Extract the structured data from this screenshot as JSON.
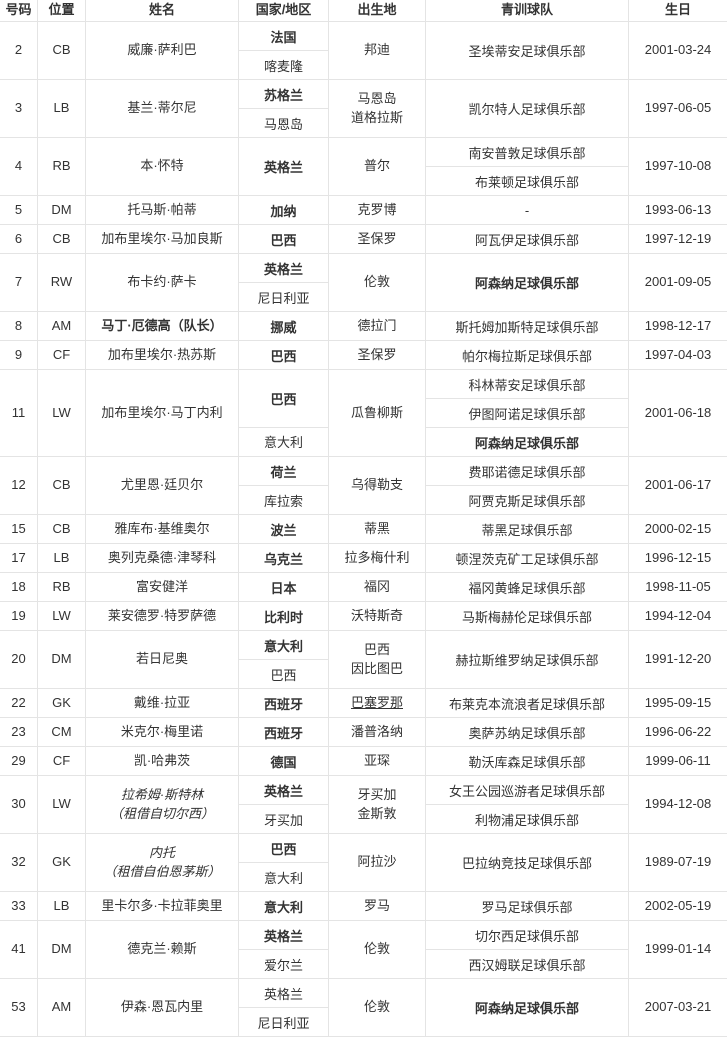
{
  "table": {
    "headers": [
      "号码",
      "位置",
      "姓名",
      "国家/地区",
      "出生地",
      "青训球队",
      "生日"
    ],
    "border_color": "#e4e4e4",
    "text_color": "#333333",
    "rows": [
      {
        "number": "2",
        "position": "CB",
        "name": {
          "lines": [
            "威廉·萨利巴"
          ]
        },
        "nationality": [
          {
            "text": "法国",
            "bold": true,
            "span": 1
          },
          {
            "text": "喀麦隆",
            "span": 1
          }
        ],
        "birthplace": {
          "lines": [
            "邦迪"
          ]
        },
        "clubs": [
          {
            "text": "圣埃蒂安足球俱乐部",
            "span": 2
          }
        ],
        "birthday": "2001-03-24",
        "units": 2
      },
      {
        "number": "3",
        "position": "LB",
        "name": {
          "lines": [
            "基兰·蒂尔尼"
          ]
        },
        "nationality": [
          {
            "text": "苏格兰",
            "bold": true,
            "span": 1
          },
          {
            "text": "马恩岛",
            "span": 1
          }
        ],
        "birthplace": {
          "lines": [
            "马恩岛",
            "道格拉斯"
          ]
        },
        "clubs": [
          {
            "text": "凯尔特人足球俱乐部",
            "span": 2
          }
        ],
        "birthday": "1997-06-05",
        "units": 2
      },
      {
        "number": "4",
        "position": "RB",
        "name": {
          "lines": [
            "本·怀特"
          ]
        },
        "nationality": [
          {
            "text": "英格兰",
            "bold": true,
            "span": 2
          }
        ],
        "birthplace": {
          "lines": [
            "普尔"
          ]
        },
        "clubs": [
          {
            "text": "南安普敦足球俱乐部",
            "span": 1
          },
          {
            "text": "布莱顿足球俱乐部",
            "span": 1
          }
        ],
        "birthday": "1997-10-08",
        "units": 2
      },
      {
        "number": "5",
        "position": "DM",
        "name": {
          "lines": [
            "托马斯·帕蒂"
          ]
        },
        "nationality": [
          {
            "text": "加纳",
            "bold": true,
            "span": 1
          }
        ],
        "birthplace": {
          "lines": [
            "克罗博"
          ]
        },
        "clubs": [
          {
            "text": "-",
            "span": 1
          }
        ],
        "birthday": "1993-06-13",
        "units": 1
      },
      {
        "number": "6",
        "position": "CB",
        "name": {
          "lines": [
            "加布里埃尔·马加良斯"
          ]
        },
        "nationality": [
          {
            "text": "巴西",
            "bold": true,
            "span": 1
          }
        ],
        "birthplace": {
          "lines": [
            "圣保罗"
          ]
        },
        "clubs": [
          {
            "text": "阿瓦伊足球俱乐部",
            "span": 1
          }
        ],
        "birthday": "1997-12-19",
        "units": 1
      },
      {
        "number": "7",
        "position": "RW",
        "name": {
          "lines": [
            "布卡约·萨卡"
          ]
        },
        "nationality": [
          {
            "text": "英格兰",
            "bold": true,
            "span": 1
          },
          {
            "text": "尼日利亚",
            "span": 1
          }
        ],
        "birthplace": {
          "lines": [
            "伦敦"
          ]
        },
        "clubs": [
          {
            "text": "阿森纳足球俱乐部",
            "bold": true,
            "span": 2
          }
        ],
        "birthday": "2001-09-05",
        "units": 2
      },
      {
        "number": "8",
        "position": "AM",
        "name": {
          "lines": [
            "马丁·厄德高（队长）"
          ],
          "bold": true
        },
        "nationality": [
          {
            "text": "挪威",
            "bold": true,
            "span": 1
          }
        ],
        "birthplace": {
          "lines": [
            "德拉门"
          ]
        },
        "clubs": [
          {
            "text": "斯托姆加斯特足球俱乐部",
            "span": 1
          }
        ],
        "birthday": "1998-12-17",
        "units": 1
      },
      {
        "number": "9",
        "position": "CF",
        "name": {
          "lines": [
            "加布里埃尔·热苏斯"
          ]
        },
        "nationality": [
          {
            "text": "巴西",
            "bold": true,
            "span": 1
          }
        ],
        "birthplace": {
          "lines": [
            "圣保罗"
          ]
        },
        "clubs": [
          {
            "text": "帕尔梅拉斯足球俱乐部",
            "span": 1
          }
        ],
        "birthday": "1997-04-03",
        "units": 1
      },
      {
        "number": "11",
        "position": "LW",
        "name": {
          "lines": [
            "加布里埃尔·马丁内利"
          ]
        },
        "nationality": [
          {
            "text": "巴西",
            "bold": true,
            "span": 2
          },
          {
            "text": "意大利",
            "span": 1
          }
        ],
        "birthplace": {
          "lines": [
            "瓜鲁柳斯"
          ]
        },
        "clubs": [
          {
            "text": "科林蒂安足球俱乐部",
            "span": 1
          },
          {
            "text": "伊图阿诺足球俱乐部",
            "span": 1
          },
          {
            "text": "阿森纳足球俱乐部",
            "bold": true,
            "span": 1
          }
        ],
        "birthday": "2001-06-18",
        "units": 3
      },
      {
        "number": "12",
        "position": "CB",
        "name": {
          "lines": [
            "尤里恩·廷贝尔"
          ]
        },
        "nationality": [
          {
            "text": "荷兰",
            "bold": true,
            "span": 1
          },
          {
            "text": "库拉索",
            "span": 1
          }
        ],
        "birthplace": {
          "lines": [
            "乌得勒支"
          ]
        },
        "clubs": [
          {
            "text": "费耶诺德足球俱乐部",
            "span": 1
          },
          {
            "text": "阿贾克斯足球俱乐部",
            "span": 1
          }
        ],
        "birthday": "2001-06-17",
        "units": 2
      },
      {
        "number": "15",
        "position": "CB",
        "name": {
          "lines": [
            "雅库布·基维奥尔"
          ]
        },
        "nationality": [
          {
            "text": "波兰",
            "bold": true,
            "span": 1
          }
        ],
        "birthplace": {
          "lines": [
            "蒂黑"
          ]
        },
        "clubs": [
          {
            "text": "蒂黑足球俱乐部",
            "span": 1
          }
        ],
        "birthday": "2000-02-15",
        "units": 1
      },
      {
        "number": "17",
        "position": "LB",
        "name": {
          "lines": [
            "奥列克桑德·津琴科"
          ]
        },
        "nationality": [
          {
            "text": "乌克兰",
            "bold": true,
            "span": 1
          }
        ],
        "birthplace": {
          "lines": [
            "拉多梅什利"
          ]
        },
        "clubs": [
          {
            "text": "顿涅茨克矿工足球俱乐部",
            "span": 1
          }
        ],
        "birthday": "1996-12-15",
        "units": 1
      },
      {
        "number": "18",
        "position": "RB",
        "name": {
          "lines": [
            "富安健洋"
          ]
        },
        "nationality": [
          {
            "text": "日本",
            "bold": true,
            "span": 1
          }
        ],
        "birthplace": {
          "lines": [
            "福冈"
          ]
        },
        "clubs": [
          {
            "text": "福冈黄蜂足球俱乐部",
            "span": 1
          }
        ],
        "birthday": "1998-11-05",
        "units": 1
      },
      {
        "number": "19",
        "position": "LW",
        "name": {
          "lines": [
            "莱安德罗·特罗萨德"
          ]
        },
        "nationality": [
          {
            "text": "比利时",
            "bold": true,
            "span": 1
          }
        ],
        "birthplace": {
          "lines": [
            "沃特斯奇"
          ]
        },
        "clubs": [
          {
            "text": "马斯梅赫伦足球俱乐部",
            "span": 1
          }
        ],
        "birthday": "1994-12-04",
        "units": 1
      },
      {
        "number": "20",
        "position": "DM",
        "name": {
          "lines": [
            "若日尼奥"
          ]
        },
        "nationality": [
          {
            "text": "意大利",
            "bold": true,
            "span": 1
          },
          {
            "text": "巴西",
            "span": 1
          }
        ],
        "birthplace": {
          "lines": [
            "巴西",
            "因比图巴"
          ]
        },
        "clubs": [
          {
            "text": "赫拉斯维罗纳足球俱乐部",
            "span": 2
          }
        ],
        "birthday": "1991-12-20",
        "units": 2
      },
      {
        "number": "22",
        "position": "GK",
        "name": {
          "lines": [
            "戴维·拉亚"
          ]
        },
        "nationality": [
          {
            "text": "西班牙",
            "bold": true,
            "span": 1
          }
        ],
        "birthplace": {
          "lines": [
            "巴塞罗那"
          ],
          "underline": true
        },
        "clubs": [
          {
            "text": "布莱克本流浪者足球俱乐部",
            "span": 1
          }
        ],
        "birthday": "1995-09-15",
        "units": 1
      },
      {
        "number": "23",
        "position": "CM",
        "name": {
          "lines": [
            "米克尔·梅里诺"
          ]
        },
        "nationality": [
          {
            "text": "西班牙",
            "bold": true,
            "span": 1
          }
        ],
        "birthplace": {
          "lines": [
            "潘普洛纳"
          ]
        },
        "clubs": [
          {
            "text": "奥萨苏纳足球俱乐部",
            "span": 1
          }
        ],
        "birthday": "1996-06-22",
        "units": 1
      },
      {
        "number": "29",
        "position": "CF",
        "name": {
          "lines": [
            "凯·哈弗茨"
          ]
        },
        "nationality": [
          {
            "text": "德国",
            "bold": true,
            "span": 1
          }
        ],
        "birthplace": {
          "lines": [
            "亚琛"
          ]
        },
        "clubs": [
          {
            "text": "勒沃库森足球俱乐部",
            "span": 1
          }
        ],
        "birthday": "1999-06-11",
        "units": 1
      },
      {
        "number": "30",
        "position": "LW",
        "name": {
          "lines": [
            "拉希姆·斯特林",
            "（租借自切尔西）"
          ],
          "italic": true
        },
        "nationality": [
          {
            "text": "英格兰",
            "bold": true,
            "span": 1
          },
          {
            "text": "牙买加",
            "span": 1
          }
        ],
        "birthplace": {
          "lines": [
            "牙买加",
            "金斯敦"
          ]
        },
        "clubs": [
          {
            "text": "女王公园巡游者足球俱乐部",
            "span": 1
          },
          {
            "text": "利物浦足球俱乐部",
            "span": 1
          }
        ],
        "birthday": "1994-12-08",
        "units": 2
      },
      {
        "number": "32",
        "position": "GK",
        "name": {
          "lines": [
            "内托",
            "（租借自伯恩茅斯）"
          ],
          "italic": true
        },
        "nationality": [
          {
            "text": "巴西",
            "bold": true,
            "span": 1
          },
          {
            "text": "意大利",
            "span": 1
          }
        ],
        "birthplace": {
          "lines": [
            "阿拉沙"
          ]
        },
        "clubs": [
          {
            "text": "巴拉纳竞技足球俱乐部",
            "span": 2
          }
        ],
        "birthday": "1989-07-19",
        "units": 2
      },
      {
        "number": "33",
        "position": "LB",
        "name": {
          "lines": [
            "里卡尔多·卡拉菲奥里"
          ]
        },
        "nationality": [
          {
            "text": "意大利",
            "bold": true,
            "span": 1
          }
        ],
        "birthplace": {
          "lines": [
            "罗马"
          ]
        },
        "clubs": [
          {
            "text": "罗马足球俱乐部",
            "span": 1
          }
        ],
        "birthday": "2002-05-19",
        "units": 1
      },
      {
        "number": "41",
        "position": "DM",
        "name": {
          "lines": [
            "德克兰·赖斯"
          ]
        },
        "nationality": [
          {
            "text": "英格兰",
            "bold": true,
            "span": 1
          },
          {
            "text": "爱尔兰",
            "span": 1
          }
        ],
        "birthplace": {
          "lines": [
            "伦敦"
          ]
        },
        "clubs": [
          {
            "text": "切尔西足球俱乐部",
            "span": 1
          },
          {
            "text": "西汉姆联足球俱乐部",
            "span": 1
          }
        ],
        "birthday": "1999-01-14",
        "units": 2
      },
      {
        "number": "53",
        "position": "AM",
        "name": {
          "lines": [
            "伊森·恩瓦内里"
          ]
        },
        "nationality": [
          {
            "text": "英格兰",
            "span": 1
          },
          {
            "text": "尼日利亚",
            "span": 1
          }
        ],
        "birthplace": {
          "lines": [
            "伦敦"
          ]
        },
        "clubs": [
          {
            "text": "阿森纳足球俱乐部",
            "bold": true,
            "span": 2
          }
        ],
        "birthday": "2007-03-21",
        "units": 2
      }
    ]
  }
}
